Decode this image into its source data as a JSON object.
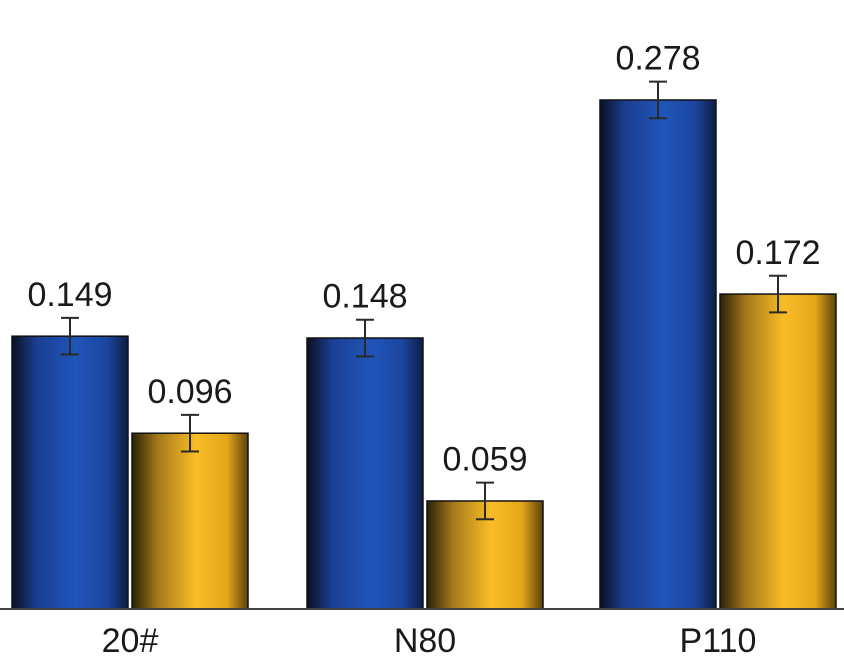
{
  "chart_data": {
    "type": "bar",
    "categories": [
      "20#",
      "N80",
      "P110"
    ],
    "series": [
      {
        "color": "#1f4fae",
        "values": [
          0.149,
          0.148,
          0.278
        ],
        "labels": [
          "0.149",
          "0.148",
          "0.278"
        ],
        "error": [
          0.01,
          0.01,
          0.01
        ]
      },
      {
        "color": "#f6b51d",
        "values": [
          0.096,
          0.059,
          0.172
        ],
        "labels": [
          "0.096",
          "0.059",
          "0.172"
        ],
        "error": [
          0.01,
          0.01,
          0.01
        ]
      }
    ],
    "ylim": [
      0,
      0.32
    ],
    "xlabel": "",
    "ylabel": "",
    "title": "",
    "grid": false,
    "legend": "none",
    "tick_labels": [
      "20#",
      "N80",
      "P110"
    ]
  }
}
